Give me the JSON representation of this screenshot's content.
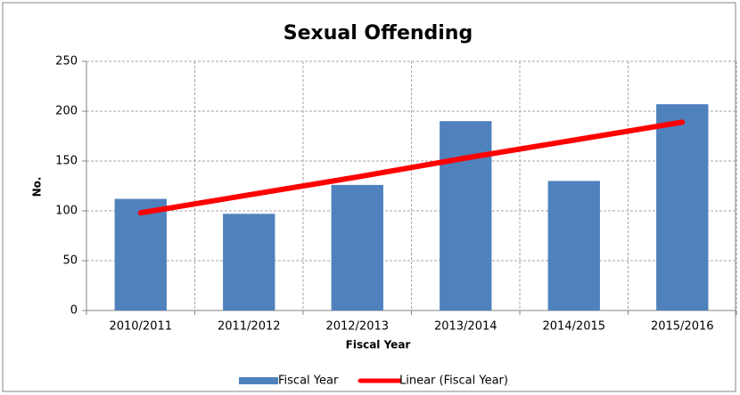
{
  "chart_data": {
    "type": "bar",
    "title": "Sexual Offending",
    "x_label": "Fiscal Year",
    "y_label": "No.",
    "categories": [
      "2010/2011",
      "2011/2012",
      "2012/2013",
      "2013/2014",
      "2014/2015",
      "2015/2016"
    ],
    "series": [
      {
        "name": "Fiscal Year",
        "color": "#4f81bd",
        "values": [
          112,
          97,
          126,
          190,
          130,
          207
        ]
      },
      {
        "name": "Linear (Fiscal Year)",
        "type": "line",
        "color": "#ff0000",
        "values": [
          98,
          116,
          134,
          153,
          171,
          189
        ]
      }
    ],
    "ylim": [
      0,
      250
    ],
    "yticks": [
      0,
      50,
      100,
      150,
      200,
      250
    ],
    "grid": true,
    "legend": "bottom"
  }
}
